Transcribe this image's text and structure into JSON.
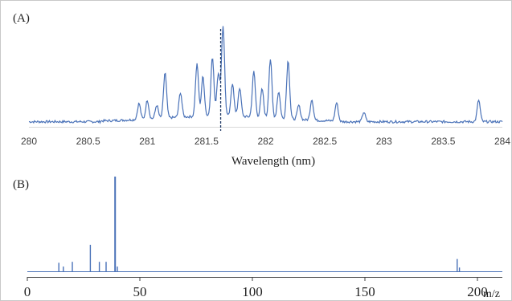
{
  "colors": {
    "line": "#4a72b8",
    "axisA": "#d9d9d9",
    "axisB": "#404040",
    "frame": "#c8c8c8",
    "dash": "#1f3864"
  },
  "chart_data": [
    {
      "type": "line",
      "panel_label": "(A)",
      "xlabel": "Wavelength (nm)",
      "ylabel": "",
      "xlim": [
        280,
        284
      ],
      "xticks": [
        "280",
        "280.5",
        "281",
        "281.5",
        "282",
        "282.5",
        "283",
        "283.5",
        "284"
      ],
      "marker_line_x": 281.62,
      "baseline_noise_note": "",
      "peaks": [
        {
          "x": 280.93,
          "y": 0.17
        },
        {
          "x": 281.0,
          "y": 0.2
        },
        {
          "x": 281.08,
          "y": 0.14
        },
        {
          "x": 281.15,
          "y": 0.48
        },
        {
          "x": 281.28,
          "y": 0.26
        },
        {
          "x": 281.42,
          "y": 0.55
        },
        {
          "x": 281.47,
          "y": 0.42
        },
        {
          "x": 281.55,
          "y": 0.62
        },
        {
          "x": 281.6,
          "y": 0.45
        },
        {
          "x": 281.64,
          "y": 0.95
        },
        {
          "x": 281.72,
          "y": 0.35
        },
        {
          "x": 281.78,
          "y": 0.3
        },
        {
          "x": 281.9,
          "y": 0.48
        },
        {
          "x": 281.97,
          "y": 0.3
        },
        {
          "x": 282.04,
          "y": 0.62
        },
        {
          "x": 282.11,
          "y": 0.28
        },
        {
          "x": 282.19,
          "y": 0.62
        },
        {
          "x": 282.28,
          "y": 0.15
        },
        {
          "x": 282.39,
          "y": 0.22
        },
        {
          "x": 282.6,
          "y": 0.2
        },
        {
          "x": 282.83,
          "y": 0.1
        },
        {
          "x": 283.8,
          "y": 0.23
        }
      ]
    },
    {
      "type": "bar",
      "panel_label": "(B)",
      "xlabel": "m/z",
      "ylabel": "",
      "xlim": [
        0,
        210
      ],
      "xticks": [
        "0",
        "50",
        "100",
        "150",
        "200"
      ],
      "x": [
        14,
        16,
        20,
        28,
        32,
        35,
        39,
        40,
        191,
        192
      ],
      "values": [
        0.09,
        0.05,
        0.1,
        0.28,
        0.1,
        0.1,
        1.0,
        0.05,
        0.13,
        0.04
      ]
    }
  ]
}
